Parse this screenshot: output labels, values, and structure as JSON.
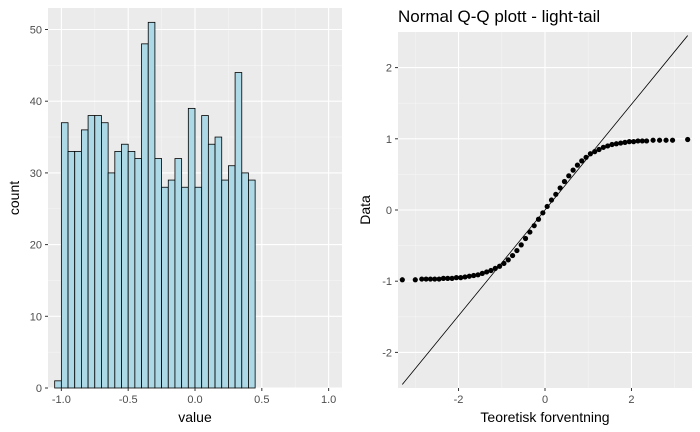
{
  "colors": {
    "panel_bg": "#ebebeb",
    "grid_major": "#ffffff",
    "grid_minor": "#f5f5f5",
    "bar_fill": "#add8e6",
    "bar_stroke": "#000000",
    "point": "#000000"
  },
  "chart_data": [
    {
      "type": "bar",
      "title": "",
      "xlabel": "value",
      "ylabel": "count",
      "xlim": [
        -1.1,
        1.1
      ],
      "ylim": [
        0,
        53
      ],
      "xticks": [
        -1.0,
        -0.5,
        0.0,
        0.5,
        1.0
      ],
      "xtick_labels": [
        "-1.0",
        "-0.5",
        "0.0",
        "0.5",
        "1.0"
      ],
      "yticks": [
        0,
        10,
        20,
        30,
        40,
        50
      ],
      "ytick_labels": [
        "0",
        "10",
        "20",
        "30",
        "40",
        "50"
      ],
      "grid": true,
      "bin_start": -1.05,
      "bin_width": 0.05,
      "values": [
        1,
        37,
        33,
        33,
        36,
        38,
        38,
        37,
        30,
        33,
        34,
        33,
        32,
        48,
        51,
        32,
        28,
        29,
        32,
        28,
        39,
        28,
        38,
        34,
        35,
        29,
        31,
        44,
        30,
        29
      ]
    },
    {
      "type": "scatter",
      "title": "Normal Q-Q plott - light-tail",
      "xlabel": "Teoretisk forventning",
      "ylabel": "Data",
      "xlim": [
        -3.4,
        3.4
      ],
      "ylim": [
        -2.5,
        2.5
      ],
      "xticks": [
        -2,
        0,
        2
      ],
      "xtick_labels": [
        "-2",
        "0",
        "2"
      ],
      "yticks": [
        -2,
        -1,
        0,
        1,
        2
      ],
      "ytick_labels": [
        "-2",
        "-1",
        "0",
        "1",
        "2"
      ],
      "grid": true,
      "reference_line": {
        "x1": -3.3,
        "y1": -2.45,
        "x2": 3.3,
        "y2": 2.45
      },
      "points": [
        [
          -3.3,
          -0.98
        ],
        [
          -3.0,
          -0.98
        ],
        [
          -2.85,
          -0.97
        ],
        [
          -2.75,
          -0.97
        ],
        [
          -2.65,
          -0.97
        ],
        [
          -2.55,
          -0.97
        ],
        [
          -2.45,
          -0.97
        ],
        [
          -2.35,
          -0.96
        ],
        [
          -2.25,
          -0.96
        ],
        [
          -2.15,
          -0.96
        ],
        [
          -2.05,
          -0.95
        ],
        [
          -1.95,
          -0.95
        ],
        [
          -1.85,
          -0.94
        ],
        [
          -1.75,
          -0.93
        ],
        [
          -1.65,
          -0.92
        ],
        [
          -1.55,
          -0.91
        ],
        [
          -1.45,
          -0.89
        ],
        [
          -1.35,
          -0.87
        ],
        [
          -1.25,
          -0.85
        ],
        [
          -1.15,
          -0.82
        ],
        [
          -1.05,
          -0.79
        ],
        [
          -0.95,
          -0.75
        ],
        [
          -0.85,
          -0.7
        ],
        [
          -0.75,
          -0.64
        ],
        [
          -0.65,
          -0.57
        ],
        [
          -0.55,
          -0.49
        ],
        [
          -0.45,
          -0.4
        ],
        [
          -0.35,
          -0.31
        ],
        [
          -0.25,
          -0.22
        ],
        [
          -0.15,
          -0.13
        ],
        [
          -0.05,
          -0.04
        ],
        [
          0.05,
          0.05
        ],
        [
          0.15,
          0.14
        ],
        [
          0.25,
          0.22
        ],
        [
          0.35,
          0.31
        ],
        [
          0.45,
          0.4
        ],
        [
          0.55,
          0.48
        ],
        [
          0.65,
          0.56
        ],
        [
          0.75,
          0.63
        ],
        [
          0.85,
          0.69
        ],
        [
          0.95,
          0.74
        ],
        [
          1.05,
          0.79
        ],
        [
          1.15,
          0.82
        ],
        [
          1.25,
          0.85
        ],
        [
          1.35,
          0.88
        ],
        [
          1.45,
          0.9
        ],
        [
          1.55,
          0.92
        ],
        [
          1.65,
          0.93
        ],
        [
          1.75,
          0.94
        ],
        [
          1.85,
          0.95
        ],
        [
          1.95,
          0.96
        ],
        [
          2.05,
          0.96
        ],
        [
          2.15,
          0.97
        ],
        [
          2.25,
          0.97
        ],
        [
          2.35,
          0.97
        ],
        [
          2.5,
          0.98
        ],
        [
          2.65,
          0.98
        ],
        [
          2.8,
          0.98
        ],
        [
          2.95,
          0.98
        ],
        [
          3.3,
          0.99
        ]
      ]
    }
  ]
}
